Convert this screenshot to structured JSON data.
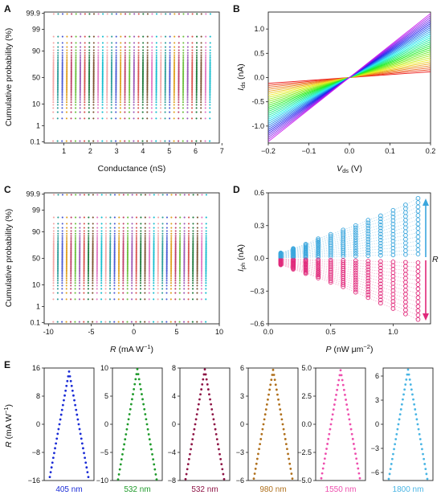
{
  "panels": {
    "A": {
      "label": "A"
    },
    "B": {
      "label": "B"
    },
    "C": {
      "label": "C"
    },
    "D": {
      "label": "D"
    },
    "E": {
      "label": "E"
    }
  },
  "chart_data": [
    {
      "id": "A",
      "type": "scatter",
      "title": "",
      "xlabel": "Conductance (nS)",
      "ylabel": "Cumulative probability (%)",
      "y_scale": "probit",
      "xlim": [
        0.25,
        6.9
      ],
      "x_ticks": [
        "1",
        "2",
        "3",
        "4",
        "5",
        "6",
        "7"
      ],
      "y_ticks": [
        "0.1",
        "1",
        "10",
        "50",
        "90",
        "99",
        "99.9"
      ],
      "n_series": 36,
      "series_centers_start": 0.6,
      "series_centers_step": 0.17,
      "series_colors": [
        "#f4a6a6",
        "#2e9e9a",
        "#4a5bd4",
        "#e0a020",
        "#c0406a",
        "#6cbf3c",
        "#9b59b6",
        "#d9534f",
        "#1f7a3c",
        "#7a5230",
        "#e377c2",
        "#17becf"
      ]
    },
    {
      "id": "B",
      "type": "line",
      "title": "",
      "xlabel": "V_ds (V)",
      "ylabel": "I_ds (nA)",
      "xlim": [
        -0.2,
        0.2
      ],
      "ylim": [
        -1.35,
        1.35
      ],
      "x_ticks": [
        "-0.2",
        "-0.1",
        "0.0",
        "0.1",
        "0.2"
      ],
      "y_ticks": [
        "-1.0",
        "-0.5",
        "0.0",
        "0.5",
        "1.0"
      ],
      "n_series": 30,
      "current_at_max_bias_min": 0.12,
      "current_at_max_bias_max": 1.32
    },
    {
      "id": "C",
      "type": "scatter",
      "title": "",
      "xlabel": "R (mA W^-1)",
      "ylabel": "Cumulative probability (%)",
      "y_scale": "probit",
      "xlim": [
        -10.5,
        10
      ],
      "x_ticks": [
        "-10",
        "-5",
        "0",
        "5",
        "10"
      ],
      "y_ticks": [
        "0.1",
        "1",
        "10",
        "50",
        "90",
        "99",
        "99.9"
      ],
      "n_series": 36,
      "series_centers_start": -9.4,
      "series_centers_step": 0.51,
      "series_colors": [
        "#f4a6a6",
        "#2e9e9a",
        "#4a5bd4",
        "#e0a020",
        "#c0406a",
        "#6cbf3c",
        "#9b59b6",
        "#d9534f",
        "#1f7a3c",
        "#7a5230",
        "#e377c2",
        "#17becf"
      ]
    },
    {
      "id": "D",
      "type": "scatter",
      "title": "",
      "xlabel": "P (nW μm^-2)",
      "ylabel": "I_ph (nA)",
      "xlim": [
        0,
        1.3
      ],
      "ylim": [
        -0.6,
        0.6
      ],
      "x_ticks": [
        "0.0",
        "0.5",
        "1.0"
      ],
      "y_ticks": [
        "-0.6",
        "-0.3",
        "0.0",
        "0.3",
        "0.6"
      ],
      "arrow_label": "R",
      "power_levels": [
        0.1,
        0.2,
        0.3,
        0.4,
        0.5,
        0.6,
        0.7,
        0.8,
        0.9,
        1.0,
        1.1,
        1.2
      ],
      "max_positive_current": [
        0.05,
        0.09,
        0.13,
        0.18,
        0.22,
        0.26,
        0.3,
        0.35,
        0.39,
        0.44,
        0.49,
        0.55
      ],
      "max_negative_current": [
        -0.06,
        -0.1,
        -0.14,
        -0.18,
        -0.22,
        -0.26,
        -0.31,
        -0.36,
        -0.41,
        -0.46,
        -0.51,
        -0.56
      ],
      "positive_color": "#3aa6dd",
      "negative_color": "#e0287a"
    },
    {
      "id": "E",
      "type": "line",
      "ylabel": "R (mA W^-1)",
      "subplots": [
        {
          "wavelength": "405 nm",
          "color": "#1a2bd6",
          "ylim": [
            -16,
            16
          ],
          "y_ticks": [
            "16",
            "8",
            "0",
            "-8",
            "-16"
          ],
          "peak": 15,
          "trough": -15
        },
        {
          "wavelength": "532 nm",
          "color": "#1e9a2a",
          "ylim": [
            -10,
            10
          ],
          "y_ticks": [
            "10",
            "5",
            "0",
            "-5",
            "-10"
          ],
          "peak": 9.8,
          "trough": -9.8
        },
        {
          "wavelength": "532 nm",
          "color": "#8e1445",
          "ylim": [
            -8,
            8
          ],
          "y_ticks": [
            "8",
            "4",
            "0",
            "-4",
            "-8"
          ],
          "peak": 7.8,
          "trough": -7.8
        },
        {
          "wavelength": "980 nm",
          "color": "#b0701c",
          "ylim": [
            -6,
            6
          ],
          "y_ticks": [
            "6",
            "3",
            "0",
            "-3",
            "-6"
          ],
          "peak": 5.8,
          "trough": -5.8
        },
        {
          "wavelength": "1550 nm",
          "color": "#ee4fae",
          "ylim": [
            -5,
            5
          ],
          "y_ticks": [
            "5.0",
            "2.5",
            "0.0",
            "-2.5",
            "-5.0"
          ],
          "peak": 4.8,
          "trough": -4.8
        },
        {
          "wavelength": "1800 nm",
          "color": "#49b5e4",
          "ylim": [
            -7,
            7
          ],
          "y_ticks": [
            "6",
            "3",
            "0",
            "-3",
            "-6"
          ],
          "peak": 6.8,
          "trough": -6.8
        }
      ]
    }
  ]
}
